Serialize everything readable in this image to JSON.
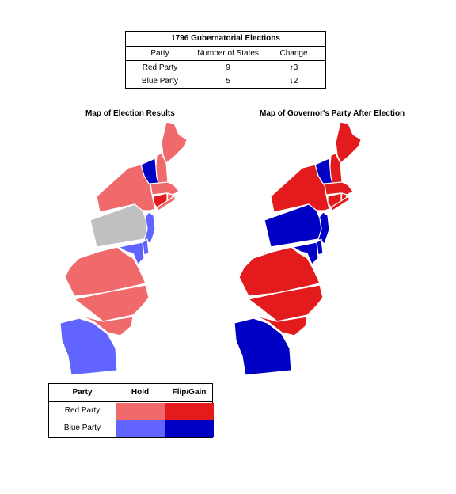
{
  "summary": {
    "title": "1796 Gubernatorial Elections",
    "headers": {
      "party": "Party",
      "states": "Number of States",
      "change": "Change"
    },
    "rows": [
      {
        "party": "Red Party",
        "states": "9",
        "change": "↑3"
      },
      {
        "party": "Blue Party",
        "states": "5",
        "change": "↓2"
      }
    ]
  },
  "maps": {
    "left_title": "Map of Election Results",
    "right_title": "Map of Governor's Party After Election"
  },
  "legend": {
    "headers": {
      "party": "Party",
      "hold": "Hold",
      "flip": "Flip/Gain"
    },
    "rows": [
      {
        "party": "Red Party",
        "hold_color": "#f0696b",
        "flip_color": "#e31b1c"
      },
      {
        "party": "Blue Party",
        "hold_color": "#6264ff",
        "flip_color": "#0000c5"
      }
    ]
  },
  "colors": {
    "red_hold": "#f0696b",
    "red_flip": "#e31b1c",
    "blue_hold": "#6264ff",
    "blue_flip": "#0000c5",
    "no_election": "#c0c0c0"
  },
  "states_left": {
    "maine": "red_hold",
    "new_hampshire": "red_hold",
    "vermont": "blue_flip",
    "massachusetts": "red_hold",
    "rhode_island": "red_hold",
    "connecticut": "red_flip",
    "new_york": "red_hold",
    "new_jersey": "blue_hold",
    "pennsylvania": "no_election",
    "delaware": "blue_hold",
    "maryland": "blue_hold",
    "virginia": "red_hold",
    "north_carolina": "red_hold",
    "south_carolina": "red_hold",
    "georgia": "blue_hold"
  },
  "states_right": {
    "maine": "red_flip",
    "new_hampshire": "red_flip",
    "vermont": "blue_flip",
    "massachusetts": "red_flip",
    "rhode_island": "red_flip",
    "connecticut": "red_flip",
    "new_york": "red_flip",
    "new_jersey": "blue_flip",
    "pennsylvania": "blue_flip",
    "delaware": "blue_flip",
    "maryland": "blue_flip",
    "virginia": "red_flip",
    "north_carolina": "red_flip",
    "south_carolina": "red_flip",
    "georgia": "blue_flip"
  }
}
